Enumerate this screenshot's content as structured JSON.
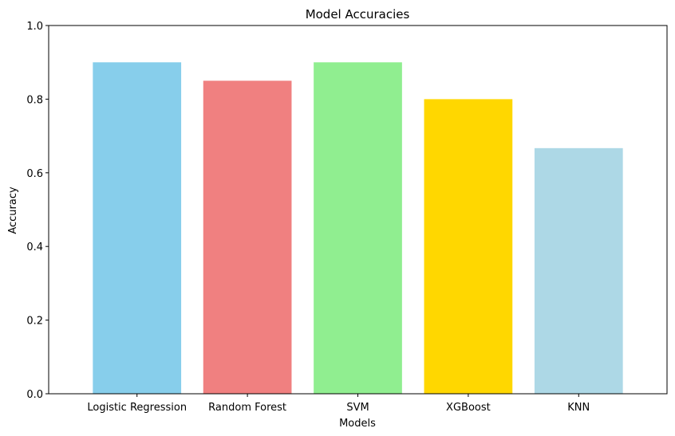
{
  "chart_data": {
    "type": "bar",
    "title": "Model Accuracies",
    "xlabel": "Models",
    "ylabel": "Accuracy",
    "categories": [
      "Logistic Regression",
      "Random Forest",
      "SVM",
      "XGBoost",
      "KNN"
    ],
    "values": [
      0.9,
      0.85,
      0.9,
      0.8,
      0.667
    ],
    "colors": [
      "#87CEEB",
      "#F08080",
      "#90EE90",
      "#FFD700",
      "#ADD8E6"
    ],
    "ylim": [
      0,
      1
    ],
    "yticks": [
      "0.0",
      "0.2",
      "0.4",
      "0.6",
      "0.8",
      "1.0"
    ],
    "grid": false,
    "legend": "none"
  }
}
